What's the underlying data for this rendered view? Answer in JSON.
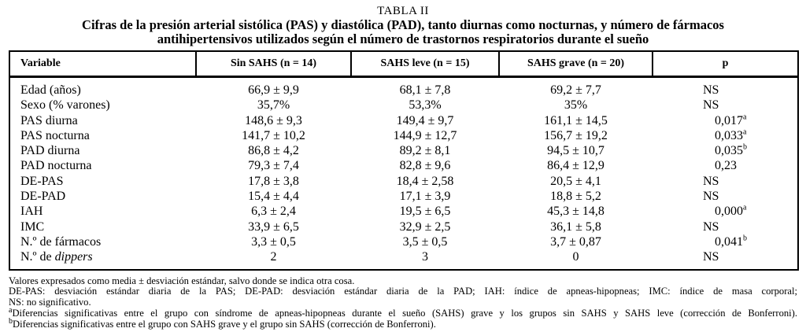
{
  "title": {
    "label": "TABLA II",
    "caption_lines": [
      "Cifras de la presión arterial sistólica (PAS) y diastólica (PAD), tanto diurnas como nocturnas, y número de fármacos",
      "antihipertensivos utilizados según el número de trastornos respiratorios durante el sueño"
    ]
  },
  "table": {
    "columns": [
      "Variable",
      "Sin SAHS (n = 14)",
      "SAHS leve (n = 15)",
      "SAHS grave (n = 20)",
      "p"
    ],
    "rows": [
      {
        "variable": "Edad (años)",
        "italic": "",
        "values": [
          "66,9 ± 9,9",
          "68,1 ± 7,8",
          "69,2 ± 7,7"
        ],
        "p": {
          "text": "NS",
          "sup": "",
          "indent": false
        }
      },
      {
        "variable": "Sexo (% varones)",
        "italic": "",
        "values": [
          "35,7%",
          "53,3%",
          "35%"
        ],
        "p": {
          "text": "NS",
          "sup": "",
          "indent": false
        }
      },
      {
        "variable": "PAS diurna",
        "italic": "",
        "values": [
          "148,6 ± 9,3",
          "149,4 ± 9,7",
          "161,1 ± 14,5"
        ],
        "p": {
          "text": "0,017",
          "sup": "a",
          "indent": true
        }
      },
      {
        "variable": "PAS nocturna",
        "italic": "",
        "values": [
          "141,7 ± 10,2",
          "144,9 ± 12,7",
          "156,7 ± 19,2"
        ],
        "p": {
          "text": "0,033",
          "sup": "a",
          "indent": true
        }
      },
      {
        "variable": "PAD diurna",
        "italic": "",
        "values": [
          "86,8 ± 4,2",
          "89,2 ± 8,1",
          "94,5 ± 10,7"
        ],
        "p": {
          "text": "0,035",
          "sup": "b",
          "indent": true
        }
      },
      {
        "variable": "PAD nocturna",
        "italic": "",
        "values": [
          "79,3 ± 7,4",
          "82,8 ± 9,6",
          "86,4 ± 12,9"
        ],
        "p": {
          "text": "0,23",
          "sup": "",
          "indent": true
        }
      },
      {
        "variable": "DE-PAS",
        "italic": "",
        "values": [
          "17,8 ± 3,8",
          "18,4 ± 2,58",
          "20,5 ± 4,1"
        ],
        "p": {
          "text": "NS",
          "sup": "",
          "indent": false
        }
      },
      {
        "variable": "DE-PAD",
        "italic": "",
        "values": [
          "15,4 ± 4,4",
          "17,1 ± 3,9",
          "18,8 ± 5,2"
        ],
        "p": {
          "text": "NS",
          "sup": "",
          "indent": false
        }
      },
      {
        "variable": "IAH",
        "italic": "",
        "values": [
          "6,3 ± 2,4",
          "19,5 ± 6,5",
          "45,3 ± 14,8"
        ],
        "p": {
          "text": "0,000",
          "sup": "a",
          "indent": true
        }
      },
      {
        "variable": "IMC",
        "italic": "",
        "values": [
          "33,9 ± 6,5",
          "32,9 ± 2,5",
          "36,1 ± 5,8"
        ],
        "p": {
          "text": "NS",
          "sup": "",
          "indent": false
        }
      },
      {
        "variable": "N.º de fármacos",
        "italic": "",
        "values": [
          "3,3 ± 0,5",
          "3,5 ± 0,5",
          "3,7 ± 0,87"
        ],
        "p": {
          "text": "0,041",
          "sup": "b",
          "indent": true
        }
      },
      {
        "variable": "N.º de ",
        "italic": "dippers",
        "values": [
          "2",
          "3",
          "0"
        ],
        "p": {
          "text": "NS",
          "sup": "",
          "indent": false
        }
      }
    ]
  },
  "footnotes": [
    {
      "sup": "",
      "text": "Valores expresados como media ± desviación estándar, salvo donde se indica otra cosa.",
      "fill": false
    },
    {
      "sup": "",
      "text": "DE-PAS: desviación estándar diaria de la PAS; DE-PAD: desviación estándar diaria de la PAD; IAH: índice de apneas-hipopneas; IMC: índice de masa corporal;",
      "fill": true
    },
    {
      "sup": "",
      "text": "NS: no significativo.",
      "fill": false
    },
    {
      "sup": "a",
      "text": "Diferencias significativas entre el grupo con síndrome de apneas-hipopneas durante el sueño (SAHS) grave y los grupos sin SAHS y SAHS leve (corrección de Bonferroni).",
      "fill": true
    },
    {
      "sup": "b",
      "text": "Diferencias significativas entre el grupo con SAHS grave y el grupo sin SAHS (corrección de Bonferroni).",
      "fill": false
    }
  ]
}
